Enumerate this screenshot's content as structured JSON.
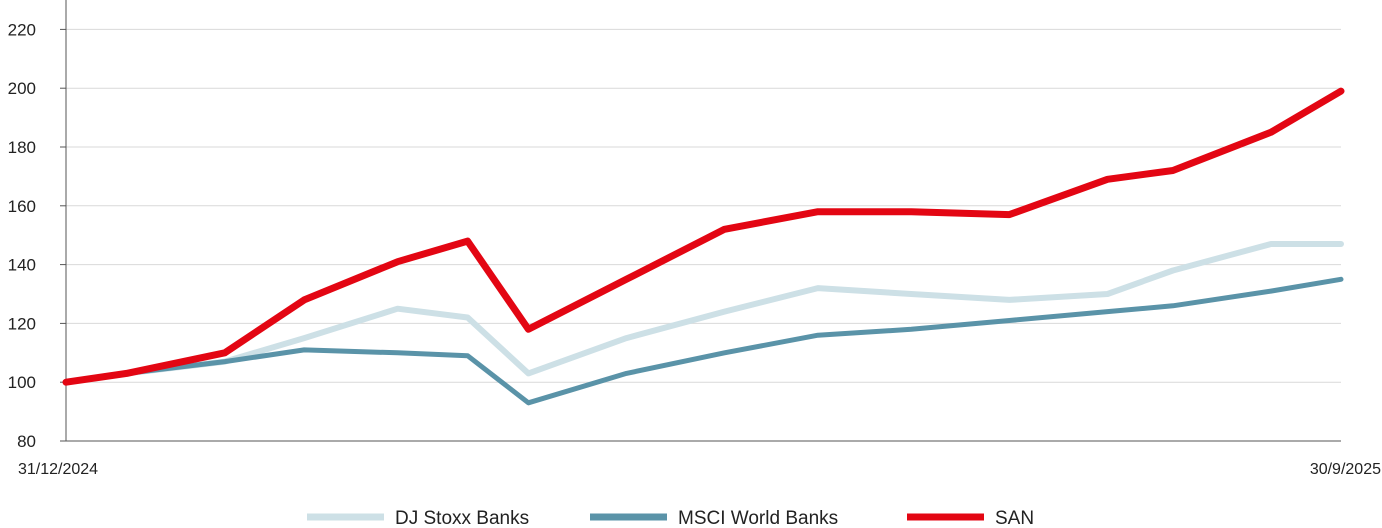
{
  "chart_data": {
    "type": "line",
    "title": "",
    "xlabel": "",
    "ylabel": "",
    "x_start_label": "31/12/2024",
    "x_end_label": "30/9/2025",
    "ylim": [
      80,
      230
    ],
    "yticks": [
      80,
      100,
      120,
      140,
      160,
      180,
      200,
      220
    ],
    "grid": true,
    "legend_position": "bottom",
    "series": [
      {
        "name": "DJ Stoxx Banks",
        "color": "#cde0e6",
        "x": [
          "31/12/2024",
          "13/1/2025",
          "3/2/2025",
          "20/2/2025",
          "12/3/2025",
          "27/3/2025",
          "9/4/2025",
          "30/4/2025",
          "21/5/2025",
          "10/6/2025",
          "30/6/2025",
          "21/7/2025",
          "11/8/2025",
          "25/8/2025",
          "15/9/2025",
          "30/9/2025"
        ],
        "values": [
          100,
          103,
          107,
          115,
          125,
          122,
          103,
          115,
          124,
          132,
          130,
          128,
          130,
          138,
          147,
          147
        ]
      },
      {
        "name": "MSCI World Banks",
        "color": "#5a93a8",
        "x": [
          "31/12/2024",
          "13/1/2025",
          "3/2/2025",
          "20/2/2025",
          "12/3/2025",
          "27/3/2025",
          "9/4/2025",
          "30/4/2025",
          "21/5/2025",
          "10/6/2025",
          "30/6/2025",
          "21/7/2025",
          "11/8/2025",
          "25/8/2025",
          "15/9/2025",
          "30/9/2025"
        ],
        "values": [
          100,
          103,
          107,
          111,
          110,
          109,
          93,
          103,
          110,
          116,
          118,
          121,
          124,
          126,
          131,
          135
        ]
      },
      {
        "name": "SAN",
        "color": "#e30613",
        "x": [
          "31/12/2024",
          "13/1/2025",
          "3/2/2025",
          "20/2/2025",
          "12/3/2025",
          "27/3/2025",
          "9/4/2025",
          "30/4/2025",
          "21/5/2025",
          "10/6/2025",
          "30/6/2025",
          "21/7/2025",
          "11/8/2025",
          "25/8/2025",
          "15/9/2025",
          "30/9/2025"
        ],
        "values": [
          100,
          103,
          110,
          128,
          141,
          148,
          118,
          135,
          152,
          158,
          158,
          157,
          169,
          172,
          185,
          199
        ]
      }
    ]
  }
}
